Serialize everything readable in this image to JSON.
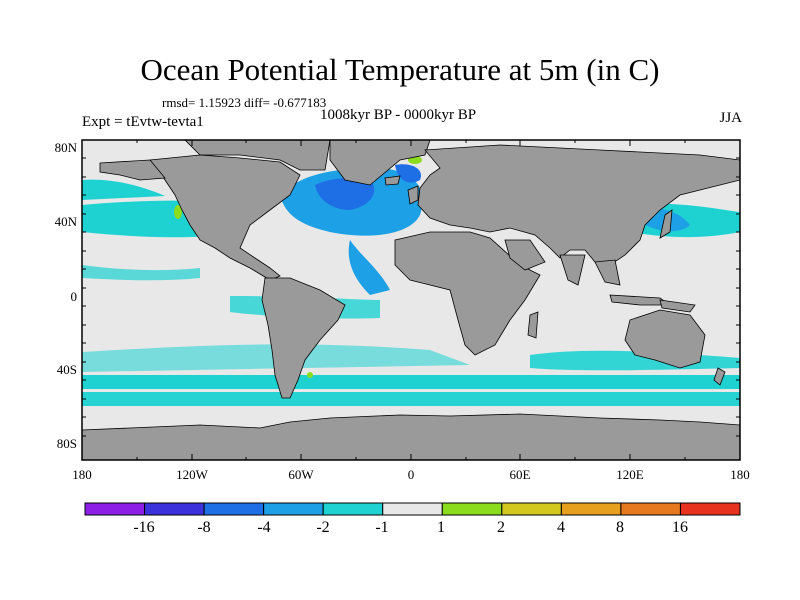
{
  "title": "Ocean Potential Temperature at 5m (in C)",
  "stats": "rmsd= 1.15923 diff= -0.677183",
  "subtitle": "1008kyr BP - 0000kyr BP",
  "experiment": "Expt = tEvtw-tevta1",
  "season": "JJA",
  "map": {
    "lat_labels": [
      "80N",
      "40N",
      "0",
      "40S",
      "80S"
    ],
    "lon_labels": [
      "180",
      "120W",
      "60W",
      "0",
      "60E",
      "120E",
      "180"
    ],
    "lat_range": [
      -90,
      90
    ],
    "lon_range": [
      -180,
      180
    ],
    "land_color": "#9a9a9a",
    "ocean_color": "#e8e8e8"
  },
  "colorbar": {
    "levels": [
      "-16",
      "-8",
      "-4",
      "-2",
      "-1",
      "1",
      "2",
      "4",
      "8",
      "16"
    ],
    "colors": [
      "#8c1ee6",
      "#3c32dc",
      "#1e6ee6",
      "#1ea0e6",
      "#1ed2d2",
      "#e8e8e8",
      "#8cdc1e",
      "#d2c81e",
      "#e6a01e",
      "#e6781e",
      "#e6321e"
    ]
  }
}
